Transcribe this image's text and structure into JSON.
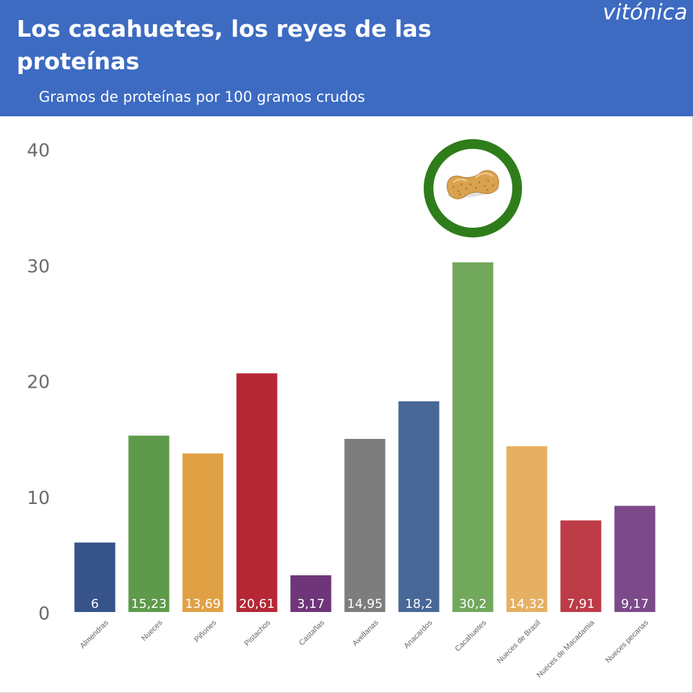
{
  "header": {
    "title": "Los cacahuetes, los reyes de las proteínas",
    "subtitle": "Gramos de proteínas por 100 gramos crudos",
    "brand": "vitónica",
    "background_color": "#3d6bc2"
  },
  "highlight": {
    "category": "Cacahuetes",
    "icon": "peanut-icon",
    "ring_color": "#2e7d1a"
  },
  "chart_data": {
    "type": "bar",
    "title": "Los cacahuetes, los reyes de las proteínas",
    "subtitle": "Gramos de proteínas por 100 gramos crudos",
    "xlabel": "",
    "ylabel": "",
    "ylim": [
      0,
      40
    ],
    "yticks": [
      0,
      10,
      20,
      30,
      40
    ],
    "grid": false,
    "categories": [
      "Almendras",
      "Nueces",
      "Piñones",
      "Pistachos",
      "Castañas",
      "Avellanas",
      "Anacardos",
      "Cacahuetes",
      "Nueces de Brasil",
      "Nueces de Macadamia",
      "Nueces pecanas"
    ],
    "values": [
      6,
      15.23,
      13.69,
      20.61,
      3.17,
      14.95,
      18.2,
      30.2,
      14.32,
      7.91,
      9.17
    ],
    "value_labels": [
      "6",
      "15,23",
      "13,69",
      "20,61",
      "3,17",
      "14,95",
      "18,2",
      "30,2",
      "14,32",
      "7,91",
      "9,17"
    ],
    "colors": [
      "#36538a",
      "#5e9a4a",
      "#e0a145",
      "#b52735",
      "#6e3579",
      "#7d7d7d",
      "#476797",
      "#72a85c",
      "#e6b062",
      "#bd3b47",
      "#7c4a89"
    ]
  }
}
